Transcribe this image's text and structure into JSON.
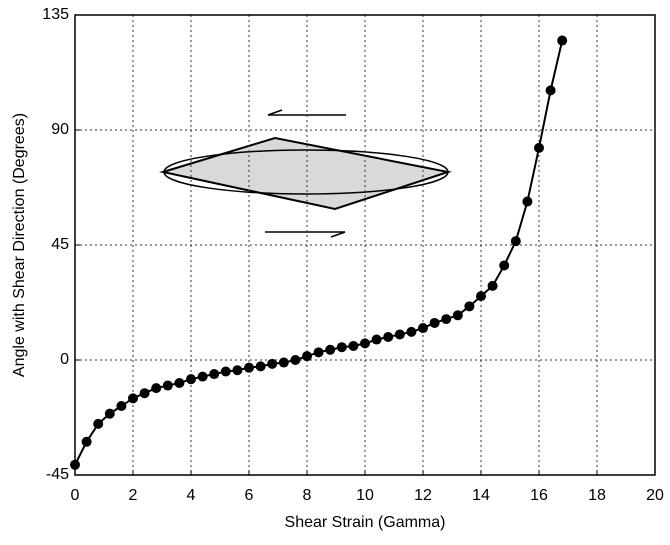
{
  "chart_data": {
    "type": "line",
    "x_label": "Shear Strain (Gamma)",
    "y_label": "Angle with Shear Direction (Degrees)",
    "xlim": [
      0,
      20
    ],
    "xticks": [
      0,
      2,
      4,
      6,
      8,
      10,
      12,
      14,
      16,
      18,
      20
    ],
    "ylim": [
      -45,
      135
    ],
    "yticks": [
      -45,
      0,
      45,
      90,
      135
    ],
    "grid": true,
    "markers": true,
    "series": [
      {
        "color": "#000000",
        "x": [
          0,
          0.4,
          0.8,
          1.2,
          1.6,
          2.0,
          2.4,
          2.8,
          3.2,
          3.6,
          4.0,
          4.4,
          4.8,
          5.2,
          5.6,
          6.0,
          6.4,
          6.8,
          7.2,
          7.6,
          8.0,
          8.4,
          8.8,
          9.2,
          9.6,
          10.0,
          10.4,
          10.8,
          11.2,
          11.6,
          12.0,
          12.4,
          12.8,
          13.2,
          13.6,
          14.0,
          14.4,
          14.8,
          15.2,
          15.6,
          16.0,
          16.4,
          16.8
        ],
        "values": [
          -41,
          -32,
          -25,
          -21,
          -18,
          -15,
          -13,
          -11,
          -10,
          -9,
          -7.5,
          -6.5,
          -5.5,
          -4.5,
          -4,
          -3,
          -2.5,
          -1.5,
          -1,
          0,
          1.5,
          3,
          4,
          5,
          5.5,
          6.5,
          8,
          9,
          10,
          11,
          12.5,
          14.5,
          16,
          17.5,
          21,
          25,
          29,
          37,
          46.5,
          62,
          83,
          105.5,
          125
        ]
      }
    ]
  }
}
